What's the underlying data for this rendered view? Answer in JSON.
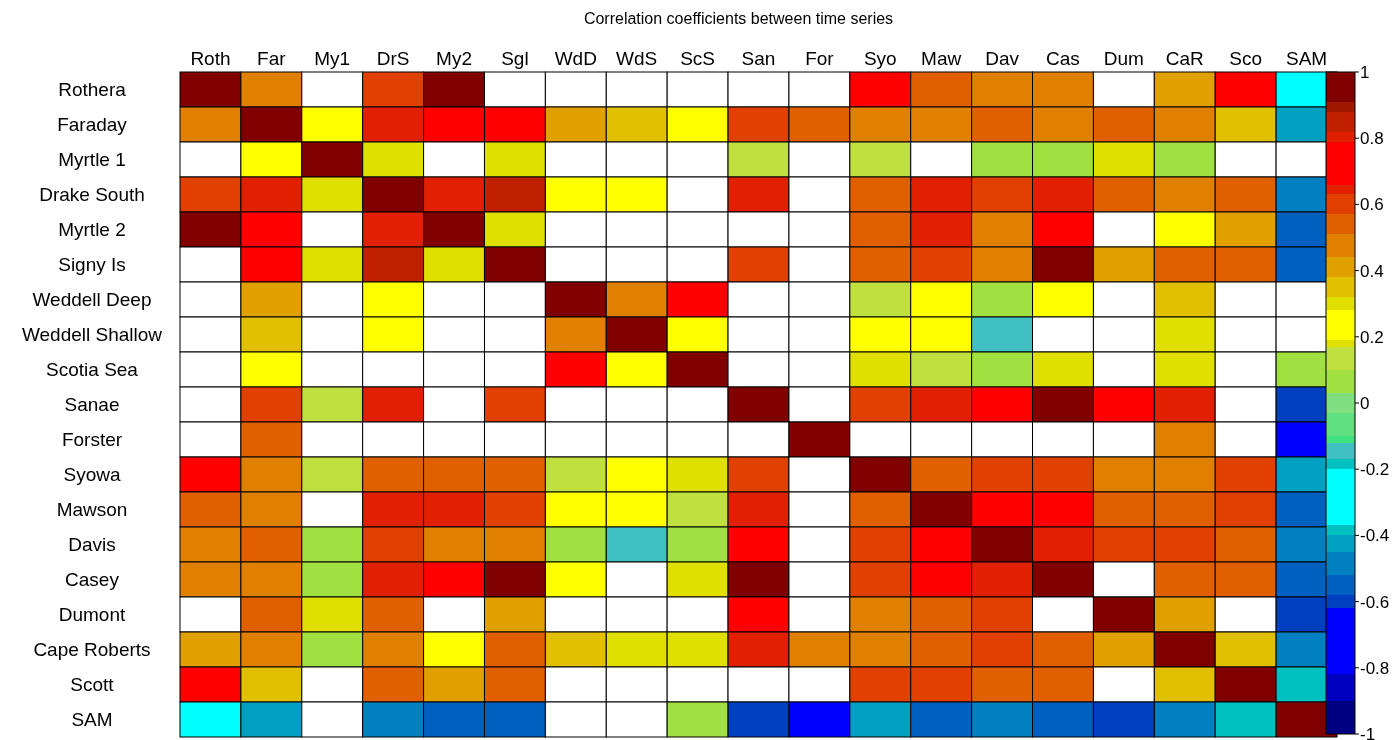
{
  "chart_data": {
    "type": "heatmap",
    "title": "Correlation coefficients between time series",
    "categories": [
      "Roth",
      "Far",
      "My1",
      "DrS",
      "My2",
      "Sgl",
      "WdD",
      "WdS",
      "ScS",
      "San",
      "For",
      "Syo",
      "Maw",
      "Dav",
      "Cas",
      "Dum",
      "CaR",
      "Sco",
      "SAM"
    ],
    "y_categories": [
      "Rothera",
      "Faraday",
      "Myrtle 1",
      "Drake South",
      "Myrtle 2",
      "Signy Is",
      "Weddell Deep",
      "Weddell Shallow",
      "Scotia Sea",
      "Sanae",
      "Forster",
      "Syowa",
      "Mawson",
      "Davis",
      "Casey",
      "Dumont",
      "Cape Roberts",
      "Scott",
      "SAM"
    ],
    "cells": [
      [
        1,
        0.47,
        null,
        0.6,
        0.95,
        null,
        null,
        null,
        null,
        null,
        null,
        0.72,
        0.54,
        0.47,
        0.47,
        null,
        0.41,
        0.72,
        -0.28
      ],
      [
        0.47,
        1,
        0.23,
        0.64,
        0.72,
        0.72,
        0.41,
        0.35,
        0.23,
        0.6,
        0.54,
        0.47,
        0.47,
        0.54,
        0.47,
        0.54,
        0.47,
        0.35,
        -0.42
      ],
      [
        null,
        0.23,
        1,
        0.3,
        null,
        0.3,
        null,
        null,
        null,
        0.14,
        null,
        0.14,
        null,
        0.06,
        0.06,
        0.3,
        0.06,
        null,
        null
      ],
      [
        0.6,
        0.64,
        0.3,
        1,
        0.64,
        0.85,
        0.23,
        0.23,
        null,
        0.64,
        null,
        0.54,
        0.64,
        0.6,
        0.64,
        0.54,
        0.47,
        0.54,
        -0.48
      ],
      [
        0.95,
        0.72,
        null,
        0.64,
        1,
        0.3,
        null,
        null,
        null,
        null,
        null,
        0.54,
        0.64,
        0.47,
        0.72,
        null,
        0.23,
        0.41,
        -0.55
      ],
      [
        null,
        0.72,
        0.3,
        0.85,
        0.3,
        1,
        null,
        null,
        null,
        0.6,
        null,
        0.54,
        0.6,
        0.47,
        0.95,
        0.41,
        0.54,
        0.54,
        -0.55
      ],
      [
        null,
        0.41,
        null,
        0.23,
        null,
        null,
        1,
        0.47,
        0.72,
        null,
        null,
        0.14,
        0.23,
        0.06,
        0.23,
        null,
        0.35,
        null,
        null
      ],
      [
        null,
        0.35,
        null,
        0.23,
        null,
        null,
        0.47,
        1,
        0.23,
        null,
        null,
        0.23,
        0.23,
        -0.15,
        null,
        null,
        0.3,
        null,
        null
      ],
      [
        null,
        0.23,
        null,
        null,
        null,
        null,
        0.72,
        0.23,
        1,
        null,
        null,
        0.3,
        0.14,
        0.06,
        0.3,
        null,
        0.3,
        null,
        0.06
      ],
      [
        null,
        0.6,
        0.14,
        0.64,
        null,
        0.6,
        null,
        null,
        null,
        1,
        null,
        0.6,
        0.64,
        0.72,
        0.95,
        0.72,
        0.64,
        null,
        -0.6
      ],
      [
        null,
        0.54,
        null,
        null,
        null,
        null,
        null,
        null,
        null,
        null,
        1,
        null,
        null,
        null,
        null,
        null,
        0.47,
        null,
        -0.7
      ],
      [
        0.72,
        0.47,
        0.14,
        0.54,
        0.54,
        0.54,
        0.14,
        0.23,
        0.3,
        0.6,
        null,
        1,
        0.54,
        0.6,
        0.6,
        0.47,
        0.47,
        0.6,
        -0.42
      ],
      [
        0.54,
        0.47,
        null,
        0.64,
        0.64,
        0.6,
        0.23,
        0.23,
        0.14,
        0.64,
        null,
        0.54,
        1,
        0.72,
        0.72,
        0.54,
        0.54,
        0.6,
        -0.55
      ],
      [
        0.47,
        0.54,
        0.06,
        0.6,
        0.47,
        0.47,
        0.06,
        -0.15,
        0.06,
        0.72,
        null,
        0.6,
        0.72,
        1,
        0.64,
        0.6,
        0.6,
        0.54,
        -0.48
      ],
      [
        0.47,
        0.47,
        0.06,
        0.64,
        0.72,
        0.95,
        0.23,
        null,
        0.3,
        0.95,
        null,
        0.6,
        0.72,
        0.64,
        1,
        null,
        0.54,
        0.54,
        -0.55
      ],
      [
        null,
        0.54,
        0.3,
        0.54,
        null,
        0.41,
        null,
        null,
        null,
        0.72,
        null,
        0.47,
        0.54,
        0.6,
        null,
        1,
        0.41,
        null,
        -0.6
      ],
      [
        0.41,
        0.47,
        0.06,
        0.47,
        0.23,
        0.54,
        0.35,
        0.3,
        0.3,
        0.64,
        0.47,
        0.47,
        0.54,
        0.6,
        0.54,
        0.41,
        1,
        0.35,
        -0.48
      ],
      [
        0.72,
        0.35,
        null,
        0.54,
        0.41,
        0.54,
        null,
        null,
        null,
        null,
        null,
        0.6,
        0.6,
        0.54,
        0.54,
        null,
        0.35,
        1,
        -0.38
      ],
      [
        -0.28,
        -0.42,
        null,
        -0.48,
        -0.55,
        -0.55,
        null,
        null,
        0.06,
        -0.6,
        -0.7,
        -0.42,
        -0.55,
        -0.48,
        -0.55,
        -0.6,
        -0.48,
        -0.38,
        1
      ]
    ],
    "clim": [
      -1,
      1
    ],
    "cticks": [
      1,
      0.8,
      0.6,
      0.4,
      0.2,
      0,
      -0.2,
      -0.4,
      -0.6,
      -0.8,
      -1
    ]
  }
}
